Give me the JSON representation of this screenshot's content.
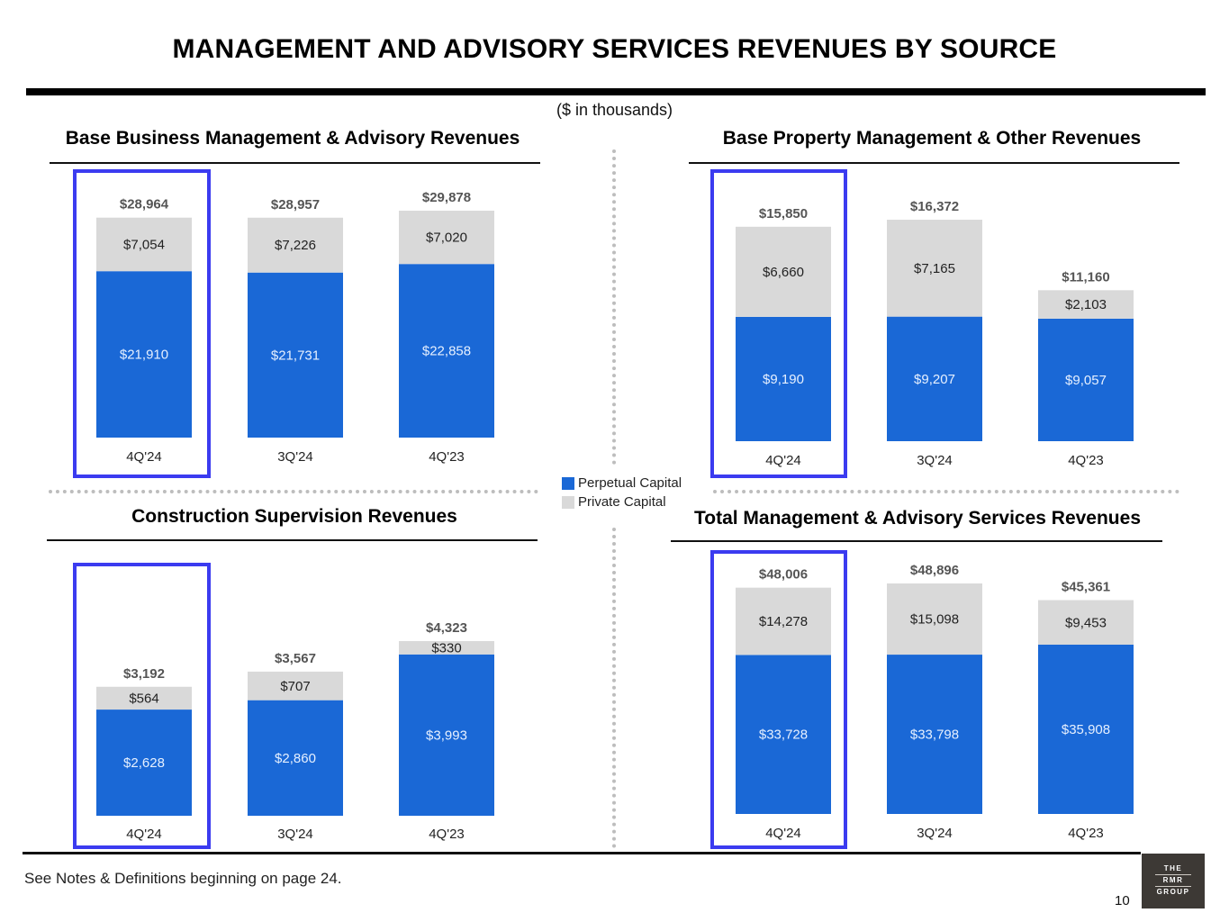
{
  "page": {
    "title": "MANAGEMENT AND ADVISORY SERVICES REVENUES BY SOURCE",
    "units_note": "($ in thousands)",
    "footnote": "See Notes & Definitions beginning on page 24.",
    "page_number": "10",
    "logo": {
      "line1": "THE",
      "line2": "RMR",
      "line3": "GROUP"
    }
  },
  "legend": [
    {
      "name": "Perpetual Capital",
      "color": "#1a68d6"
    },
    {
      "name": "Private Capital",
      "color": "#d9d9d9"
    }
  ],
  "colors": {
    "perpetual": "#1a68d6",
    "private": "#d9d9d9",
    "highlight": "#3b3bf0"
  },
  "chart_data": [
    {
      "type": "bar",
      "stacked": true,
      "title": "Base Business Management & Advisory Revenues",
      "categories": [
        "4Q'24",
        "3Q'24",
        "4Q'23"
      ],
      "highlighted_category": "4Q'24",
      "series": [
        {
          "name": "Perpetual Capital",
          "values": [
            21910,
            21731,
            22858
          ],
          "labels": [
            "$21,910",
            "$21,731",
            "$22,858"
          ]
        },
        {
          "name": "Private Capital",
          "values": [
            7054,
            7226,
            7020
          ],
          "labels": [
            "$7,054",
            "$7,226",
            "$7,020"
          ]
        }
      ],
      "totals": [
        28964,
        28957,
        29878
      ],
      "total_labels": [
        "$28,964",
        "$28,957",
        "$29,878"
      ],
      "xlabel": "",
      "ylabel": "",
      "grid": false
    },
    {
      "type": "bar",
      "stacked": true,
      "title": "Base Property Management & Other Revenues",
      "categories": [
        "4Q'24",
        "3Q'24",
        "4Q'23"
      ],
      "highlighted_category": "4Q'24",
      "series": [
        {
          "name": "Perpetual Capital",
          "values": [
            9190,
            9207,
            9057
          ],
          "labels": [
            "$9,190",
            "$9,207",
            "$9,057"
          ]
        },
        {
          "name": "Private Capital",
          "values": [
            6660,
            7165,
            2103
          ],
          "labels": [
            "$6,660",
            "$7,165",
            "$2,103"
          ]
        }
      ],
      "totals": [
        15850,
        16372,
        11160
      ],
      "total_labels": [
        "$15,850",
        "$16,372",
        "$11,160"
      ],
      "xlabel": "",
      "ylabel": "",
      "grid": false
    },
    {
      "type": "bar",
      "stacked": true,
      "title": "Construction Supervision Revenues",
      "categories": [
        "4Q'24",
        "3Q'24",
        "4Q'23"
      ],
      "highlighted_category": "4Q'24",
      "series": [
        {
          "name": "Perpetual Capital",
          "values": [
            2628,
            2860,
            3993
          ],
          "labels": [
            "$2,628",
            "$2,860",
            "$3,993"
          ]
        },
        {
          "name": "Private Capital",
          "values": [
            564,
            707,
            330
          ],
          "labels": [
            "$564",
            "$707",
            "$330"
          ]
        }
      ],
      "totals": [
        3192,
        3567,
        4323
      ],
      "total_labels": [
        "$3,192",
        "$3,567",
        "$4,323"
      ],
      "xlabel": "",
      "ylabel": "",
      "grid": false
    },
    {
      "type": "bar",
      "stacked": true,
      "title": "Total Management & Advisory Services Revenues",
      "categories": [
        "4Q'24",
        "3Q'24",
        "4Q'23"
      ],
      "highlighted_category": "4Q'24",
      "series": [
        {
          "name": "Perpetual Capital",
          "values": [
            33728,
            33798,
            35908
          ],
          "labels": [
            "$33,728",
            "$33,798",
            "$35,908"
          ]
        },
        {
          "name": "Private Capital",
          "values": [
            14278,
            15098,
            9453
          ],
          "labels": [
            "$14,278",
            "$15,098",
            "$9,453"
          ]
        }
      ],
      "totals": [
        48006,
        48896,
        45361
      ],
      "total_labels": [
        "$48,006",
        "$48,896",
        "$45,361"
      ],
      "xlabel": "",
      "ylabel": "",
      "grid": false
    }
  ]
}
